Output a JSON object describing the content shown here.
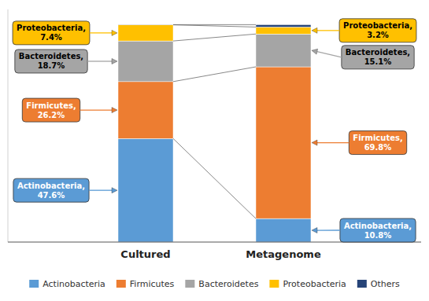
{
  "chart_data": {
    "type": "bar",
    "stacked": true,
    "categories": [
      "Cultured",
      "Metagenome"
    ],
    "series": [
      {
        "name": "Actinobacteria",
        "color": "#5B9BD5",
        "values": [
          47.6,
          10.8
        ]
      },
      {
        "name": "Firmicutes",
        "color": "#ED7D31",
        "values": [
          26.2,
          69.8
        ]
      },
      {
        "name": "Bacteroidetes",
        "color": "#A5A5A5",
        "values": [
          18.7,
          15.1
        ]
      },
      {
        "name": "Proteobacteria",
        "color": "#FFC000",
        "values": [
          7.4,
          3.2
        ]
      },
      {
        "name": "Others",
        "color": "#264478",
        "values": [
          0.1,
          1.1
        ]
      }
    ],
    "annotations": [
      [
        "Proteobacteria,\n7.4%",
        "Bacteroidetes,\n18.7%",
        "Firmicutes,\n26.2%",
        "Actinobacteria,\n47.6%"
      ],
      [
        "Proteobacteria,\n3.2%",
        "Bacteroidetes,\n15.1%",
        "Firmicutes,\n69.8%",
        "Actinobacteria,\n10.8%"
      ]
    ],
    "ylim": [
      0,
      107
    ],
    "tick_labels": "x",
    "grid": false,
    "legend": "bottom"
  }
}
